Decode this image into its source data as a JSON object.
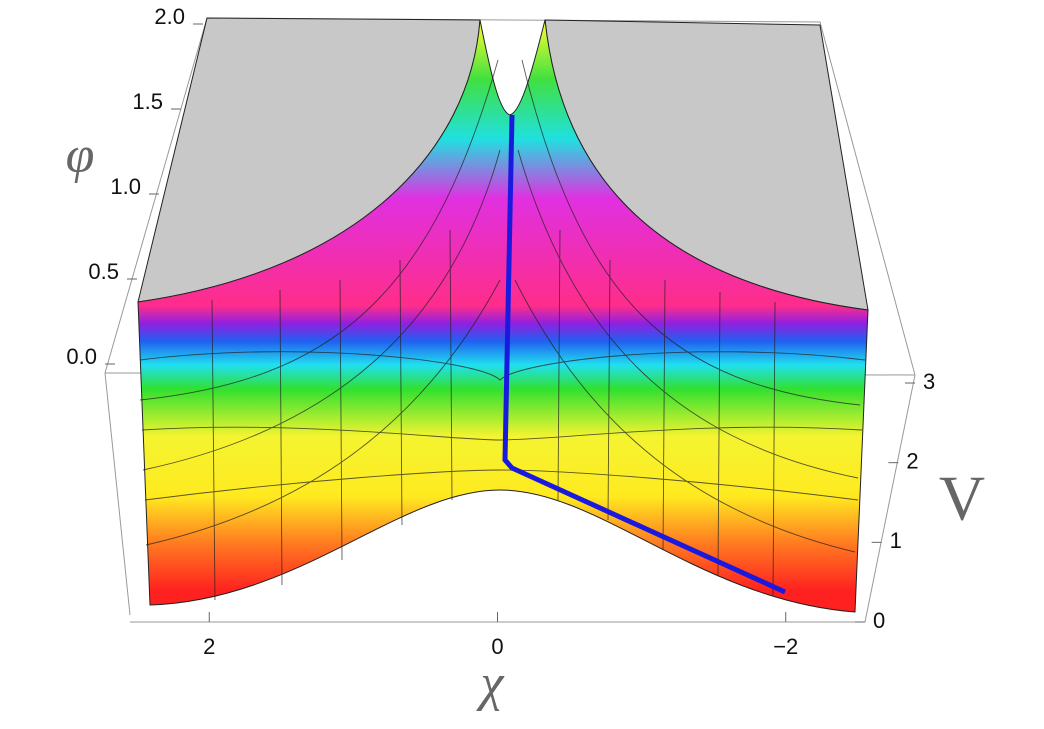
{
  "chart_data": {
    "type": "surface3d",
    "x_label": "χ",
    "y_label": "φ",
    "z_label": "V",
    "xlim": [
      2.55,
      -2.55
    ],
    "xticks": [
      2,
      0,
      {
        "value": -2,
        "label": "−2"
      }
    ],
    "ylim": [
      0,
      2
    ],
    "yticks": [
      {
        "value": 0,
        "label": "0.0"
      },
      0.5,
      {
        "value": 1,
        "label": "1.0"
      },
      1.5,
      {
        "value": 2,
        "label": "2.0"
      }
    ],
    "zlim": [
      0,
      3
    ],
    "zticks": [
      0,
      1,
      2,
      3
    ],
    "trajectory_color": "#1a1adf"
  }
}
